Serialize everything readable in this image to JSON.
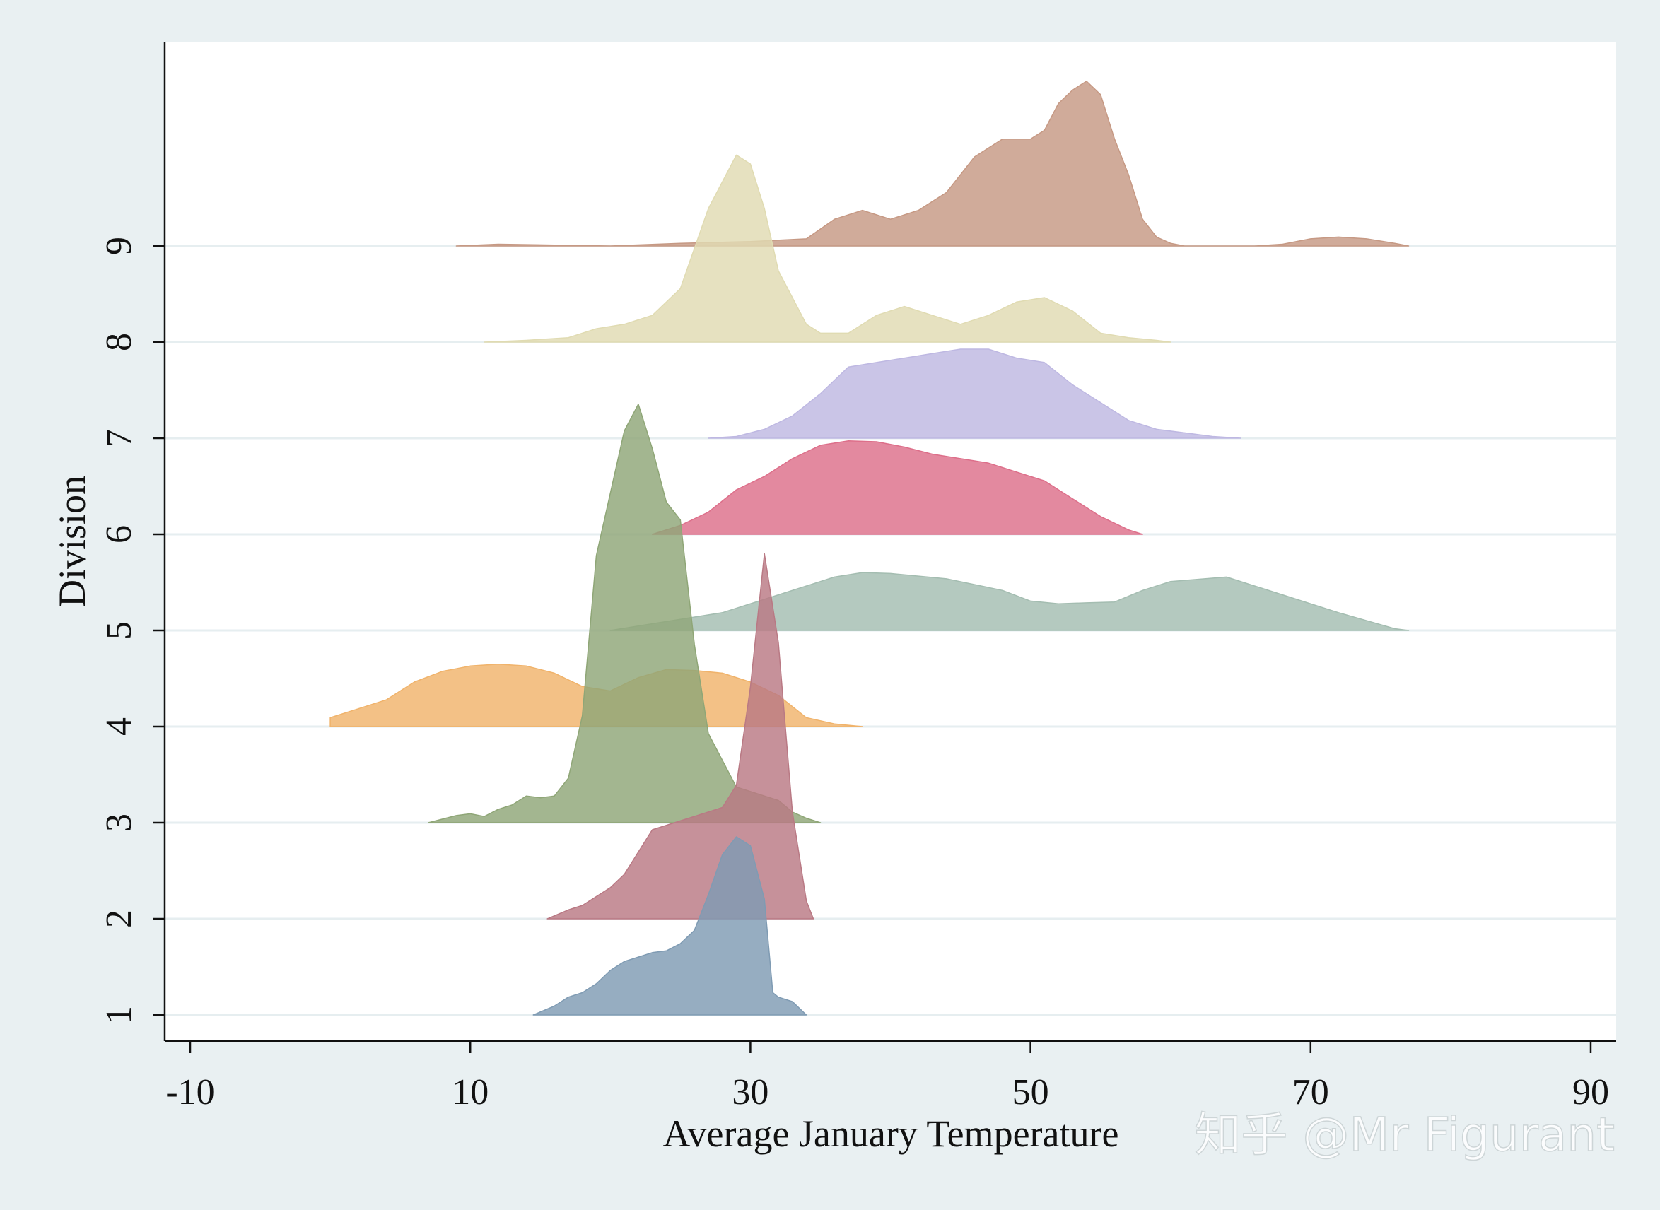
{
  "watermark": "知乎 @Mr Figurant",
  "chart_data": {
    "type": "ridgeline",
    "title": "",
    "xlabel": "Average January Temperature",
    "ylabel": "Division",
    "xlim": [
      -10,
      90
    ],
    "xticks": [
      -10,
      10,
      30,
      50,
      70,
      90
    ],
    "categories": [
      "1",
      "2",
      "3",
      "4",
      "5",
      "6",
      "7",
      "8",
      "9"
    ],
    "grid": true,
    "series": [
      {
        "color": "#7f9bb3",
        "x": [
          14.5,
          16,
          17,
          18,
          19,
          20,
          21,
          22,
          23,
          24,
          25,
          26,
          27,
          28,
          29,
          30,
          31,
          31.6,
          32,
          33,
          34
        ],
        "y": [
          0.0,
          0.1,
          0.2,
          0.25,
          0.35,
          0.5,
          0.6,
          0.65,
          0.7,
          0.72,
          0.8,
          0.95,
          1.35,
          1.8,
          2.0,
          1.9,
          1.3,
          0.25,
          0.2,
          0.15,
          0.0
        ]
      },
      {
        "color": "#b97984",
        "x": [
          15.5,
          17,
          18,
          19,
          20,
          21,
          22,
          23,
          24,
          25,
          26,
          27,
          28,
          29,
          30,
          31,
          32,
          33,
          34,
          34.5
        ],
        "y": [
          0.0,
          0.1,
          0.15,
          0.25,
          0.35,
          0.5,
          0.75,
          1.0,
          1.05,
          1.1,
          1.15,
          1.2,
          1.25,
          1.5,
          2.6,
          4.1,
          3.1,
          1.2,
          0.2,
          0.0
        ]
      },
      {
        "color": "#8fa677",
        "x": [
          7,
          9,
          10,
          11,
          12,
          13,
          14,
          15,
          16,
          17,
          18,
          19,
          20,
          21,
          22,
          23,
          24,
          25,
          26,
          27,
          28,
          29,
          30,
          31,
          32,
          33,
          34,
          35
        ],
        "y": [
          0.0,
          0.08,
          0.1,
          0.07,
          0.15,
          0.2,
          0.3,
          0.28,
          0.3,
          0.5,
          1.2,
          3.0,
          3.7,
          4.4,
          4.7,
          4.2,
          3.6,
          3.4,
          2.0,
          1.0,
          0.7,
          0.4,
          0.35,
          0.3,
          0.25,
          0.12,
          0.05,
          0.0
        ]
      },
      {
        "color": "#f0b36b",
        "x": [
          0,
          2,
          4,
          6,
          8,
          10,
          12,
          14,
          16,
          18,
          20,
          22,
          24,
          26,
          28,
          30,
          32,
          34,
          36,
          38
        ],
        "y": [
          0.1,
          0.2,
          0.3,
          0.5,
          0.62,
          0.68,
          0.7,
          0.68,
          0.6,
          0.45,
          0.4,
          0.55,
          0.64,
          0.63,
          0.6,
          0.5,
          0.35,
          0.1,
          0.03,
          0.0
        ]
      },
      {
        "color": "#a4bdb1",
        "x": [
          20,
          24,
          28,
          32,
          36,
          38,
          40,
          44,
          48,
          50,
          52,
          54,
          56,
          58,
          60,
          64,
          68,
          72,
          76,
          77
        ],
        "y": [
          0.0,
          0.1,
          0.2,
          0.4,
          0.6,
          0.65,
          0.64,
          0.58,
          0.45,
          0.33,
          0.3,
          0.31,
          0.32,
          0.45,
          0.55,
          0.6,
          0.4,
          0.2,
          0.02,
          0.0
        ]
      },
      {
        "color": "#dd6f8a",
        "x": [
          23,
          25,
          27,
          29,
          31,
          33,
          35,
          37,
          39,
          41,
          43,
          45,
          47,
          49,
          51,
          53,
          55,
          57,
          58
        ],
        "y": [
          0.0,
          0.1,
          0.25,
          0.5,
          0.65,
          0.85,
          1.0,
          1.05,
          1.04,
          0.98,
          0.9,
          0.85,
          0.8,
          0.7,
          0.6,
          0.4,
          0.2,
          0.05,
          0.0
        ]
      },
      {
        "color": "#beb8e2",
        "x": [
          27,
          29,
          31,
          33,
          35,
          37,
          39,
          41,
          43,
          45,
          47,
          49,
          51,
          53,
          55,
          57,
          59,
          61,
          63,
          65
        ],
        "y": [
          0.0,
          0.02,
          0.1,
          0.25,
          0.5,
          0.8,
          0.85,
          0.9,
          0.95,
          1.0,
          1.0,
          0.9,
          0.85,
          0.6,
          0.4,
          0.2,
          0.1,
          0.06,
          0.02,
          0.0
        ]
      },
      {
        "color": "#e0dbb2",
        "x": [
          11,
          14,
          17,
          19,
          21,
          23,
          25,
          27,
          28,
          29,
          30,
          31,
          32,
          34,
          35,
          37,
          39,
          41,
          43,
          45,
          47,
          49,
          51,
          53,
          55,
          57,
          59,
          60
        ],
        "y": [
          0.0,
          0.02,
          0.05,
          0.15,
          0.2,
          0.3,
          0.6,
          1.5,
          1.8,
          2.1,
          2.0,
          1.5,
          0.8,
          0.2,
          0.1,
          0.1,
          0.3,
          0.4,
          0.3,
          0.2,
          0.3,
          0.45,
          0.5,
          0.35,
          0.1,
          0.05,
          0.02,
          0.0
        ]
      },
      {
        "color": "#c69984",
        "x": [
          9,
          12,
          16,
          20,
          25,
          30,
          34,
          36,
          38,
          40,
          42,
          44,
          46,
          48,
          49,
          50,
          51,
          52,
          53,
          54,
          55,
          56,
          57,
          58,
          59,
          60,
          61,
          62,
          66,
          68,
          70,
          72,
          74,
          76,
          77
        ],
        "y": [
          0.0,
          0.02,
          0.01,
          0.0,
          0.03,
          0.05,
          0.08,
          0.3,
          0.4,
          0.3,
          0.4,
          0.6,
          1.0,
          1.2,
          1.2,
          1.2,
          1.3,
          1.6,
          1.75,
          1.85,
          1.7,
          1.2,
          0.8,
          0.3,
          0.1,
          0.03,
          0.0,
          0.0,
          0.0,
          0.02,
          0.08,
          0.1,
          0.08,
          0.03,
          0.0
        ]
      }
    ]
  }
}
